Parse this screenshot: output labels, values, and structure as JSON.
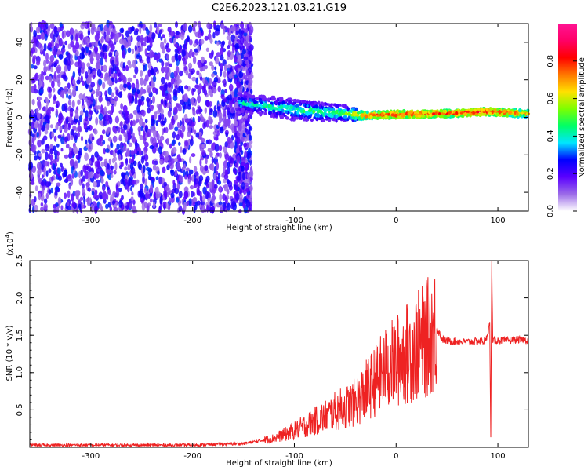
{
  "figure": {
    "title": "C2E6.2023.121.03.21.G19"
  },
  "chart_data": [
    {
      "type": "heatmap",
      "xlabel": "Height of straight line (km)",
      "ylabel": "Frequency (Hz)",
      "xlim": [
        -360,
        130
      ],
      "ylim": [
        -50,
        50
      ],
      "x_ticks": [
        -300,
        -200,
        -100,
        0,
        100
      ],
      "y_ticks": [
        -40,
        -20,
        0,
        20,
        40
      ],
      "colorbar": {
        "label": "Normalized spectral amplitude",
        "range": [
          0.0,
          1.0
        ],
        "ticks": [
          0.0,
          0.2,
          0.4,
          0.6,
          0.8
        ],
        "colors": [
          "#ffffff",
          "#9b6be8",
          "#5a00ff",
          "#0000ff",
          "#00e5ff",
          "#00ff66",
          "#7dff00",
          "#ffe000",
          "#ff7700",
          "#ff0000",
          "#ff0066",
          "#ff1493"
        ]
      },
      "features": {
        "noise_region_x": [
          -360,
          -155
        ],
        "signal_track": [
          {
            "x": -155,
            "f_center": 8,
            "width": 8,
            "amp": 0.4
          },
          {
            "x": -100,
            "f_center": 4,
            "width": 9,
            "amp": 0.45
          },
          {
            "x": -50,
            "f_center": 2,
            "width": 7,
            "amp": 0.5
          },
          {
            "x": -30,
            "f_center": 1,
            "width": 3,
            "amp": 0.75
          },
          {
            "x": 0,
            "f_center": 1.5,
            "width": 3,
            "amp": 0.85
          },
          {
            "x": 50,
            "f_center": 2,
            "width": 3,
            "amp": 0.8
          },
          {
            "x": 90,
            "f_center": 3,
            "width": 3,
            "amp": 0.85
          },
          {
            "x": 130,
            "f_center": 2,
            "width": 3,
            "amp": 0.7
          }
        ]
      }
    },
    {
      "type": "line",
      "xlabel": "Height of straight line (km)",
      "ylabel": "SNR (10 * v/v)",
      "y_multiplier": "(x10",
      "y_multiplier_exp": "4",
      "y_multiplier_close": ")",
      "xlim": [
        -360,
        130
      ],
      "ylim": [
        0,
        25000
      ],
      "x_ticks": [
        -300,
        -200,
        -100,
        0,
        100
      ],
      "y_ticks": [
        0.5,
        1.0,
        1.5,
        2.0,
        2.5
      ],
      "series": [
        {
          "color": "#ee2222",
          "x": [
            -360,
            -300,
            -200,
            -150,
            -120,
            -100,
            -80,
            -60,
            -40,
            -30,
            -20,
            -10,
            0,
            10,
            20,
            30,
            35,
            40,
            45,
            50,
            60,
            70,
            80,
            88,
            92,
            93,
            94,
            95,
            96,
            100,
            110,
            120,
            130
          ],
          "y": [
            300,
            300,
            300,
            500,
            1200,
            2200,
            3500,
            4800,
            6000,
            7500,
            9000,
            10500,
            11500,
            12500,
            13500,
            14500,
            15500,
            16000,
            14500,
            14200,
            14200,
            14100,
            14200,
            14200,
            16500,
            1500,
            25000,
            14000,
            14300,
            14300,
            14300,
            14400,
            14300
          ]
        }
      ]
    }
  ]
}
